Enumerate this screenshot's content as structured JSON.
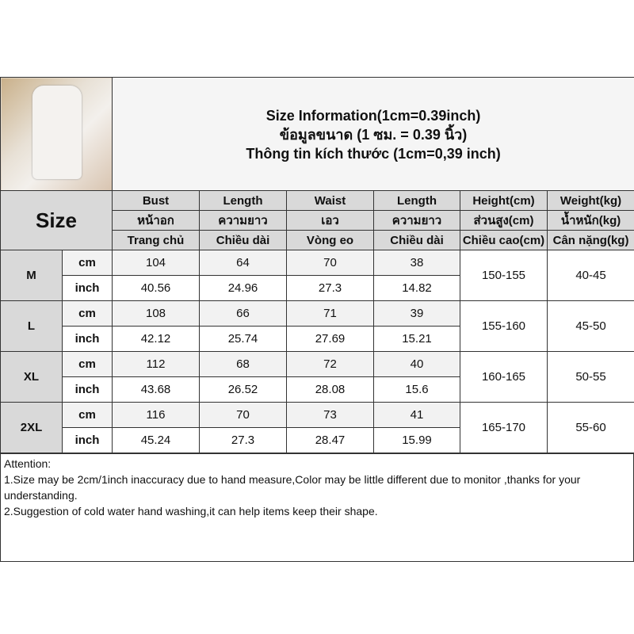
{
  "title_lines": [
    "Size Information(1cm=0.39inch)",
    "ข้อมูลขนาด (1 ซม. = 0.39 นิ้ว)",
    "Thông tin kích thước (1cm=0,39 inch)"
  ],
  "size_label": "Size",
  "columns": [
    {
      "en": "Bust",
      "th": "หน้าอก",
      "vi": "Trang chủ"
    },
    {
      "en": "Length",
      "th": "ความยาว",
      "vi": "Chiều dài"
    },
    {
      "en": "Waist",
      "th": "เอว",
      "vi": "Vòng eo"
    },
    {
      "en": "Length",
      "th": "ความยาว",
      "vi": "Chiều dài"
    },
    {
      "en": "Height(cm)",
      "th": "ส่วนสูง(cm)",
      "vi": "Chiều cao(cm)"
    },
    {
      "en": "Weight(kg)",
      "th": "น้ำหนัก(kg)",
      "vi": "Cân nặng(kg)"
    }
  ],
  "units": {
    "cm": "cm",
    "inch": "inch"
  },
  "sizes": [
    {
      "name": "M",
      "cm": [
        "104",
        "64",
        "70",
        "38"
      ],
      "inch": [
        "40.56",
        "24.96",
        "27.3",
        "14.82"
      ],
      "height": "150-155",
      "weight": "40-45"
    },
    {
      "name": "L",
      "cm": [
        "108",
        "66",
        "71",
        "39"
      ],
      "inch": [
        "42.12",
        "25.74",
        "27.69",
        "15.21"
      ],
      "height": "155-160",
      "weight": "45-50"
    },
    {
      "name": "XL",
      "cm": [
        "112",
        "68",
        "72",
        "40"
      ],
      "inch": [
        "43.68",
        "26.52",
        "28.08",
        "15.6"
      ],
      "height": "160-165",
      "weight": "50-55"
    },
    {
      "name": "2XL",
      "cm": [
        "116",
        "70",
        "73",
        "41"
      ],
      "inch": [
        "45.24",
        "27.3",
        "28.47",
        "15.99"
      ],
      "height": "165-170",
      "weight": "55-60"
    }
  ],
  "notes": [
    "Attention:",
    "1.Size may be 2cm/1inch inaccuracy due to hand measure,Color may be little different due to monitor ,thanks for your understanding.",
    "2.Suggestion of cold water hand washing,it can help items keep their shape."
  ]
}
